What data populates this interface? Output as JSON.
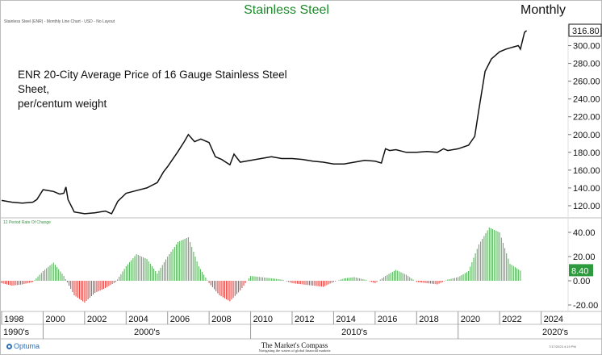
{
  "header": {
    "title": "Stainless Steel",
    "period": "Monthly",
    "subtitle": "Stainless Steel (ENR) - Monthly Line Chart - USD - No Layout"
  },
  "annotation": {
    "line1": "ENR 20-City Average Price of 16 Gauge Stainless Steel Sheet,",
    "line2": "per/centum weight"
  },
  "roc_label": "12 Period Rate Of Change",
  "footer": {
    "logo": "Optuma",
    "brand": "The Market's Compass",
    "tagline": "Navigating the waters of global financial markets",
    "date": "7/17/2023 4:19 PM"
  },
  "colors": {
    "title": "#1e8a2c",
    "price_line": "#111111",
    "roc_positive": "#4caf50",
    "roc_negative": "#e53935",
    "roc_badge": "#2e9a3e"
  },
  "chart_data": [
    {
      "type": "line",
      "title": "Stainless Steel",
      "ylim": [
        110,
        316.8
      ],
      "y_ticks": [
        120,
        140,
        160,
        180,
        200,
        220,
        240,
        260,
        280,
        300
      ],
      "last_value_label": "316.80",
      "x": [
        1998.0,
        1998.5,
        1999.0,
        1999.5,
        1999.7,
        2000.0,
        2000.5,
        2000.8,
        2001.0,
        2001.1,
        2001.2,
        2001.5,
        2002.0,
        2002.5,
        2003.0,
        2003.3,
        2003.6,
        2004.0,
        2004.5,
        2005.0,
        2005.5,
        2005.8,
        2006.0,
        2006.5,
        2006.8,
        2007.0,
        2007.3,
        2007.6,
        2008.0,
        2008.3,
        2008.6,
        2009.0,
        2009.2,
        2009.5,
        2010.0,
        2010.5,
        2011.0,
        2011.5,
        2012.0,
        2012.5,
        2013.0,
        2013.5,
        2014.0,
        2014.5,
        2015.0,
        2015.5,
        2016.0,
        2016.3,
        2016.5,
        2016.7,
        2017.0,
        2017.5,
        2018.0,
        2018.5,
        2019.0,
        2019.3,
        2019.5,
        2020.0,
        2020.5,
        2020.8,
        2021.0,
        2021.3,
        2021.6,
        2022.0,
        2022.3,
        2022.6,
        2022.9,
        2023.0,
        2023.2,
        2023.3
      ],
      "series": [
        {
          "values": [
            126,
            124,
            123,
            124,
            127,
            138,
            136,
            133,
            134,
            141,
            127,
            113,
            111,
            112,
            114,
            111,
            125,
            134,
            137,
            140,
            146,
            158,
            164,
            181,
            192,
            200,
            192,
            195,
            191,
            175,
            172,
            166,
            178,
            169,
            171,
            173,
            175,
            173,
            173,
            172,
            170,
            169,
            167,
            167,
            169,
            171,
            170,
            168,
            184,
            182,
            183,
            180,
            180,
            181,
            180,
            184,
            182,
            184,
            188,
            198,
            228,
            271,
            285,
            293,
            296,
            298,
            300,
            296,
            315,
            316.8
          ]
        }
      ]
    },
    {
      "type": "bar",
      "title": "12 Period Rate Of Change",
      "ylim": [
        -20,
        40
      ],
      "y_ticks": [
        40,
        20,
        0,
        -20
      ],
      "y_tick_labels": [
        "40.00",
        "20.00",
        "0.00",
        "-20.00"
      ],
      "last_value_label": "8.40",
      "x": [
        1998.0,
        1998.5,
        1999.0,
        1999.5,
        2000.0,
        2000.5,
        2001.0,
        2001.5,
        2002.0,
        2002.5,
        2003.0,
        2003.5,
        2004.0,
        2004.5,
        2005.0,
        2005.5,
        2006.0,
        2006.5,
        2007.0,
        2007.5,
        2008.0,
        2008.5,
        2009.0,
        2009.5,
        2010.0,
        2010.5,
        2011.0,
        2011.5,
        2012.0,
        2012.5,
        2013.0,
        2013.5,
        2014.0,
        2014.5,
        2015.0,
        2015.5,
        2016.0,
        2016.5,
        2017.0,
        2017.5,
        2018.0,
        2018.5,
        2019.0,
        2019.5,
        2020.0,
        2020.5,
        2021.0,
        2021.5,
        2022.0,
        2022.5,
        2023.0
      ],
      "series": [
        {
          "values": [
            -2,
            -4,
            -3,
            -1,
            8,
            15,
            4,
            -12,
            -18,
            -10,
            -6,
            -1,
            12,
            22,
            18,
            6,
            20,
            32,
            36,
            12,
            -2,
            -12,
            -17,
            -8,
            4,
            3,
            2,
            1,
            -2,
            -3,
            -4,
            -5,
            -1,
            2,
            3,
            1,
            -2,
            4,
            9,
            5,
            -1,
            -2,
            -3,
            1,
            3,
            8,
            30,
            44,
            40,
            14,
            8.4
          ]
        }
      ]
    }
  ],
  "x_axis": {
    "year_ticks": [
      "1998",
      "2000",
      "2002",
      "2004",
      "2006",
      "2008",
      "2010",
      "2012",
      "2014",
      "2016",
      "2018",
      "2020",
      "2022",
      "2024"
    ],
    "decades": [
      "1990's",
      "2000's",
      "2010's",
      "2020's"
    ]
  }
}
